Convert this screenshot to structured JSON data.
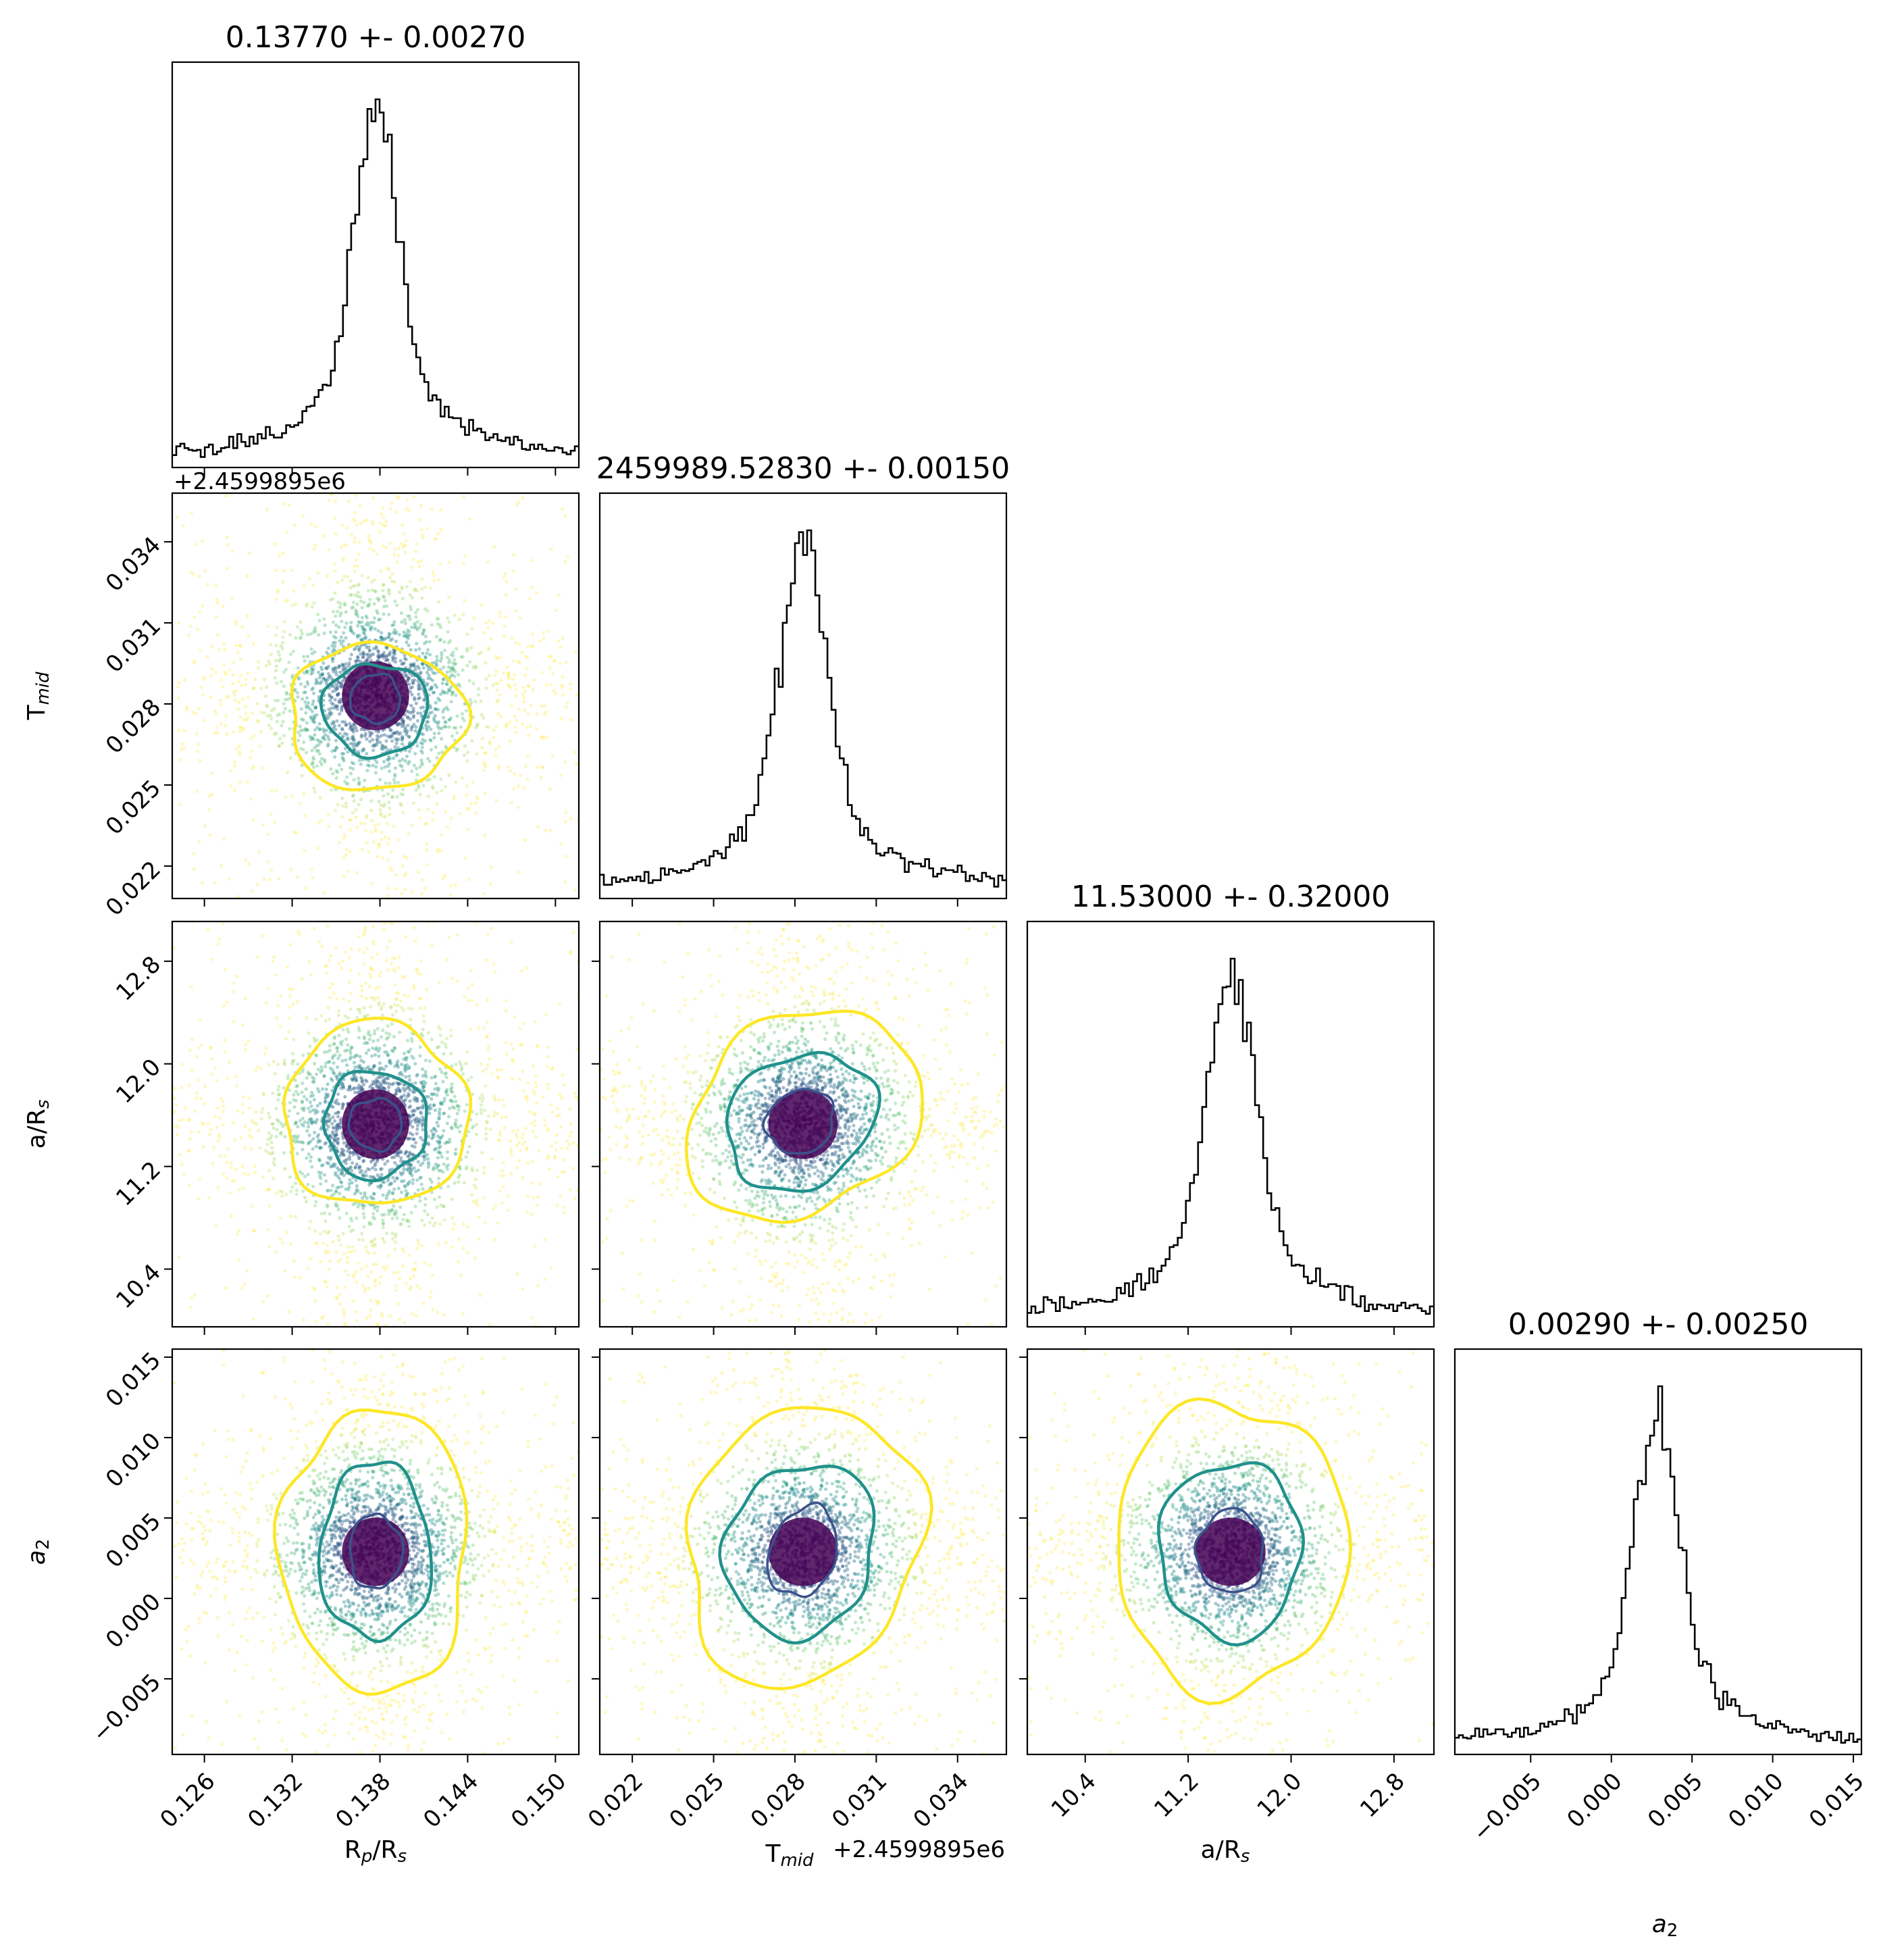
{
  "chart_data": {
    "type": "corner",
    "colors": {
      "inner": "#3b528b",
      "middle": "#21918c",
      "outer": "#fde725",
      "hist": "#000000",
      "point_dark": "#440154"
    },
    "parameters": [
      {
        "key": "rp",
        "axis_label": "R_p/R_s",
        "label_main": "R",
        "label_sub": "p",
        "label_tail": "/R",
        "label_sub2": "s",
        "title": "0.13770 +- 0.00270",
        "mean": 0.1377,
        "std": 0.0027,
        "range": [
          0.1238,
          0.1516
        ],
        "ticks": [
          0.126,
          0.132,
          0.138,
          0.144,
          0.15
        ],
        "tick_labels": [
          "0.126",
          "0.132",
          "0.138",
          "0.144",
          "0.150"
        ],
        "offset": ""
      },
      {
        "key": "tmid",
        "axis_label": "T_mid",
        "label_main": "T",
        "label_sub": "mid",
        "label_tail": "",
        "label_sub2": "",
        "title": "2459989.52830 +- 0.00150",
        "mean": 0.0283,
        "std": 0.0015,
        "range": [
          0.0208,
          0.0358
        ],
        "ticks": [
          0.022,
          0.025,
          0.028,
          0.031,
          0.034
        ],
        "tick_labels": [
          "0.022",
          "0.025",
          "0.028",
          "0.031",
          "0.034"
        ],
        "offset": "+2.4599895e6"
      },
      {
        "key": "ars",
        "axis_label": "a/R_s",
        "label_main": "a/R",
        "label_sub": "s",
        "label_tail": "",
        "label_sub2": "",
        "title": "11.53000 +- 0.32000",
        "mean": 11.53,
        "std": 0.32,
        "range": [
          9.95,
          13.11
        ],
        "ticks": [
          10.4,
          11.2,
          12.0,
          12.8
        ],
        "tick_labels": [
          "10.4",
          "11.2",
          "12.0",
          "12.8"
        ],
        "offset": ""
      },
      {
        "key": "a2",
        "axis_label": "a_2",
        "label_main": "a",
        "label_sub": "2",
        "label_tail": "",
        "label_sub2": "",
        "title": "0.00290 +- 0.00250",
        "mean": 0.0029,
        "std": 0.0025,
        "range": [
          -0.0097,
          0.0155
        ],
        "ticks": [
          -0.005,
          0.0,
          0.005,
          0.01,
          0.015
        ],
        "tick_labels": [
          "−0.005",
          "0.000",
          "0.005",
          "0.010",
          "0.015"
        ],
        "offset": ""
      }
    ],
    "contours": [
      {
        "pair": [
          1,
          0
        ],
        "inner": [
          0.1377,
          0.0282,
          0.0017,
          0.0009
        ],
        "middle": [
          0.1377,
          0.0278,
          0.0036,
          0.0017
        ],
        "outer": [
          0.1377,
          0.0275,
          0.006,
          0.0027
        ]
      },
      {
        "pair": [
          2,
          0
        ],
        "inner": [
          0.1377,
          11.53,
          0.0018,
          0.2
        ],
        "middle": [
          0.1377,
          11.53,
          0.0035,
          0.42
        ],
        "outer": [
          0.1377,
          11.6,
          0.0063,
          0.72
        ]
      },
      {
        "pair": [
          2,
          1
        ],
        "inner": [
          0.0282,
          11.55,
          0.0013,
          0.24
        ],
        "middle": [
          0.0282,
          11.55,
          0.0029,
          0.5
        ],
        "outer": [
          0.0283,
          11.6,
          0.0046,
          0.75
        ]
      },
      {
        "pair": [
          3,
          0
        ],
        "inner": [
          0.1377,
          0.0029,
          0.0018,
          0.0023
        ],
        "middle": [
          0.1377,
          0.0029,
          0.0038,
          0.0055
        ],
        "outer": [
          0.1377,
          0.003,
          0.0064,
          0.0088
        ]
      },
      {
        "pair": [
          3,
          1
        ],
        "inner": [
          0.0283,
          0.0029,
          0.0012,
          0.0029
        ],
        "middle": [
          0.0282,
          0.003,
          0.0027,
          0.0055
        ],
        "outer": [
          0.0283,
          0.0033,
          0.0042,
          0.0089
        ]
      },
      {
        "pair": [
          3,
          2
        ],
        "inner": [
          11.53,
          0.0029,
          0.26,
          0.0026
        ],
        "middle": [
          11.53,
          0.003,
          0.55,
          0.0055
        ],
        "outer": [
          11.53,
          0.0032,
          0.9,
          0.009
        ]
      }
    ]
  }
}
